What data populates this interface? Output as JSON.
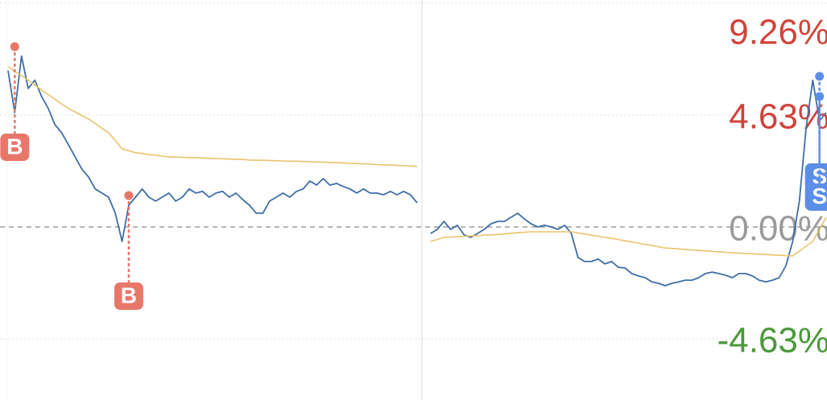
{
  "chart_data": {
    "type": "line",
    "ylim": [
      -7.16,
      9.39
    ],
    "yticks": [
      {
        "value": 9.26,
        "label": "9.26%"
      },
      {
        "value": 4.63,
        "label": "4.63%"
      },
      {
        "value": 0,
        "label": "0.00%"
      },
      {
        "value": -4.63,
        "label": "-4.63%"
      }
    ],
    "grid": true,
    "series": [
      {
        "color": "#3f6ea8",
        "values": [
          6.47,
          4.73,
          7.07,
          5.73,
          6.07,
          5.4,
          4.9,
          4.23,
          3.9,
          3.4,
          2.9,
          2.4,
          2.07,
          1.57,
          1.4,
          1.23,
          0.57,
          -0.6,
          0.9,
          1.23,
          1.57,
          1.23,
          1.07,
          1.23,
          1.4,
          1.07,
          1.23,
          1.57,
          1.4,
          1.47,
          1.23,
          1.4,
          1.47,
          1.23,
          1.4,
          1.13,
          0.9,
          0.57,
          0.57,
          1.07,
          1.23,
          1.4,
          1.23,
          1.47,
          1.57,
          1.9,
          1.73,
          2.0,
          1.73,
          1.8,
          1.67,
          1.57,
          1.4,
          1.57,
          1.4,
          1.4,
          1.33,
          1.47,
          1.33,
          1.47,
          1.33,
          1.0,
          null,
          -0.27,
          -0.1,
          0.23,
          -0.1,
          0.07,
          -0.33,
          -0.43,
          -0.27,
          -0.1,
          0.13,
          0.23,
          0.23,
          0.4,
          0.57,
          0.33,
          0.13,
          0,
          0.07,
          0,
          -0.1,
          0.07,
          -0.27,
          -1.27,
          -1.43,
          -1.43,
          -1.33,
          -1.53,
          -1.43,
          -1.67,
          -1.7,
          -1.93,
          -2.03,
          -2.1,
          -2.27,
          -2.33,
          -2.43,
          -2.33,
          -2.27,
          -2.2,
          -2.2,
          -2.1,
          -1.93,
          -1.87,
          -1.93,
          -2.0,
          -2.1,
          -1.93,
          -1.93,
          -2.03,
          -2.2,
          -2.27,
          -2.2,
          -2.1,
          -1.6,
          -0.6,
          1.07,
          4.07,
          6.07,
          4.4,
          4.73
        ]
      },
      {
        "color": "#e8c46c",
        "values": [
          6.63,
          6.44,
          6.26,
          6.07,
          5.87,
          5.67,
          5.47,
          5.28,
          5.09,
          4.9,
          4.76,
          4.61,
          4.47,
          4.28,
          4.09,
          3.9,
          3.57,
          3.23,
          3.15,
          3.07,
          3.04,
          3.0,
          2.97,
          2.93,
          2.9,
          2.89,
          2.88,
          2.87,
          2.86,
          2.85,
          2.84,
          2.83,
          2.82,
          2.81,
          2.8,
          2.79,
          2.77,
          2.76,
          2.76,
          2.75,
          2.74,
          2.73,
          2.72,
          2.72,
          2.71,
          2.7,
          2.69,
          2.68,
          2.67,
          2.66,
          2.65,
          2.63,
          2.62,
          2.61,
          2.6,
          2.58,
          2.57,
          2.56,
          2.55,
          2.53,
          2.52,
          2.5,
          null,
          -0.6,
          -0.52,
          -0.43,
          -0.42,
          -0.4,
          -0.39,
          -0.37,
          -0.36,
          -0.34,
          -0.33,
          -0.31,
          -0.29,
          -0.26,
          -0.24,
          -0.22,
          -0.2,
          -0.2,
          -0.2,
          -0.2,
          -0.2,
          -0.2,
          -0.2,
          -0.25,
          -0.29,
          -0.34,
          -0.38,
          -0.43,
          -0.47,
          -0.52,
          -0.57,
          -0.62,
          -0.67,
          -0.72,
          -0.77,
          -0.82,
          -0.87,
          -0.89,
          -0.91,
          -0.93,
          -0.95,
          -0.97,
          -0.99,
          -1.01,
          -1.03,
          -1.05,
          -1.07,
          -1.08,
          -1.1,
          -1.11,
          -1.13,
          -1.14,
          -1.16,
          -1.17,
          -1.19,
          -1.2,
          -1.0,
          -0.8,
          -0.6,
          -0.1,
          0.4
        ]
      }
    ],
    "markers": [
      {
        "label": "B",
        "index": 1,
        "value": 7.46,
        "color": "#e8776a"
      },
      {
        "label": "B",
        "index": 18,
        "value": 1.3,
        "color": "#e8776a"
      },
      {
        "label": "S",
        "index": 121,
        "value": 6.23,
        "color": "#5b8ee6"
      },
      {
        "label": "S",
        "index": 121,
        "value": 5.4,
        "color": "#5b8ee6"
      }
    ]
  }
}
